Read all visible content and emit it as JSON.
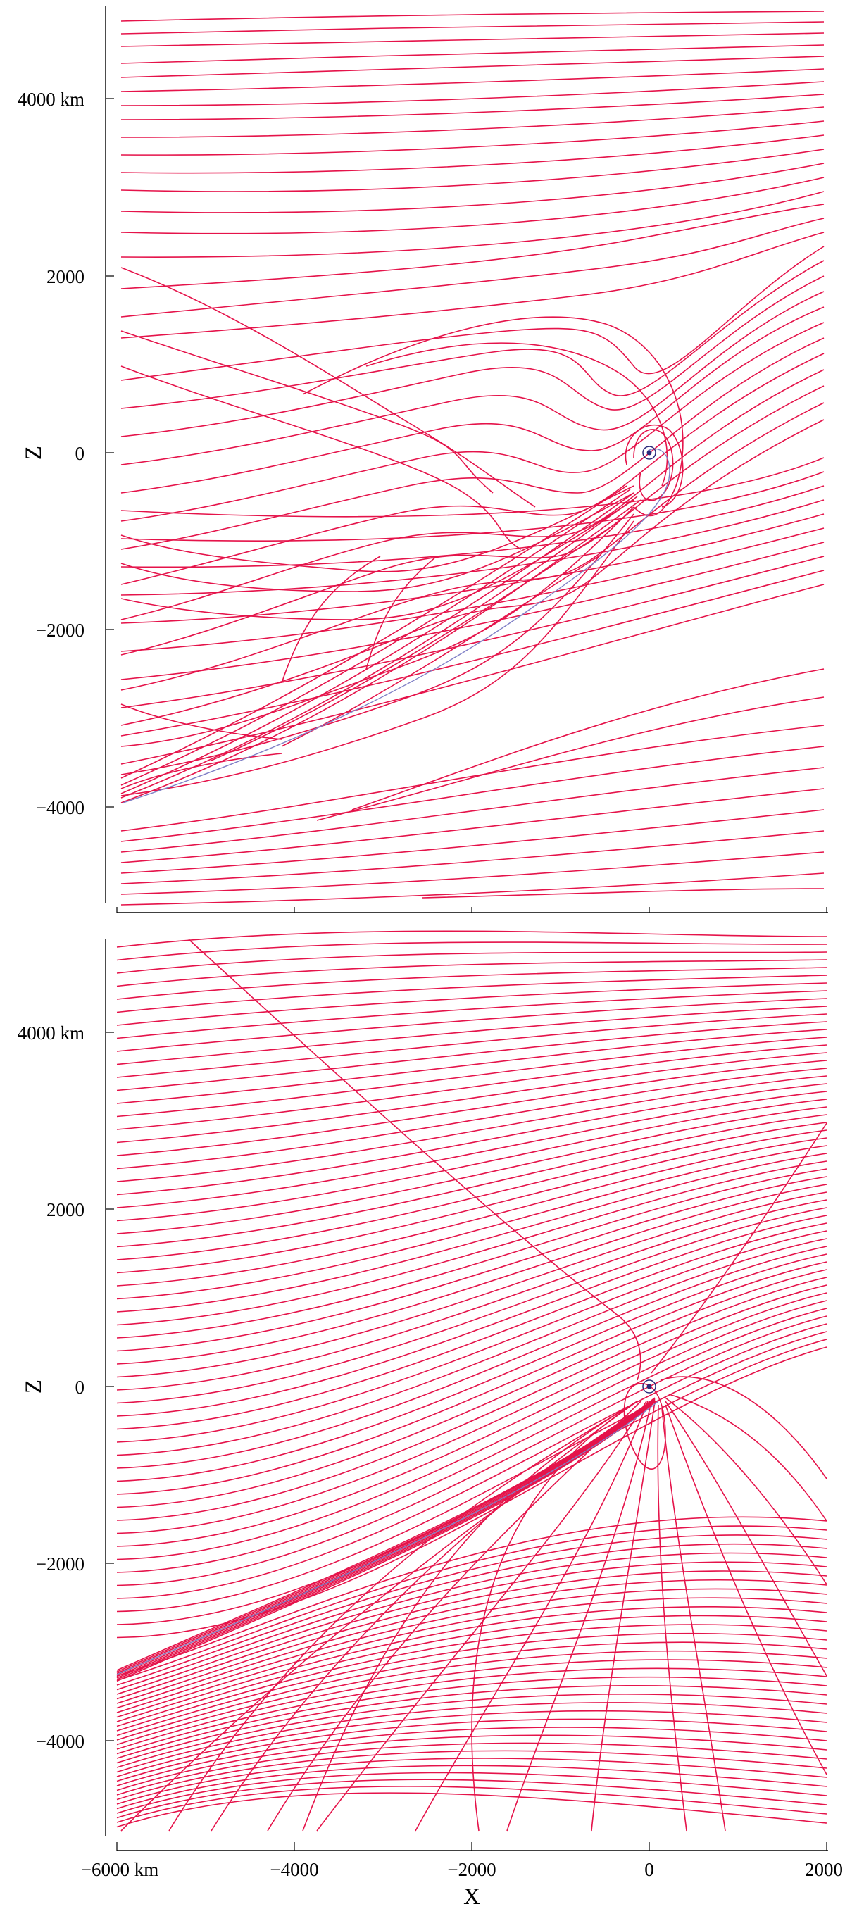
{
  "figure": {
    "panels": [
      {
        "id": "top",
        "y_title": "Z",
        "y_ticks": [
          {
            "value": 4000,
            "label": "4000 km"
          },
          {
            "value": 2000,
            "label": "2000"
          },
          {
            "value": 0,
            "label": "0"
          },
          {
            "value": -2000,
            "label": "−2000"
          },
          {
            "value": -4000,
            "label": "−4000"
          }
        ],
        "x_ticks": [
          {
            "value": -6000,
            "label": ""
          },
          {
            "value": -4000,
            "label": ""
          },
          {
            "value": -2000,
            "label": ""
          },
          {
            "value": 0,
            "label": ""
          },
          {
            "value": 2000,
            "label": ""
          }
        ]
      },
      {
        "id": "bottom",
        "y_title": "Z",
        "x_title": "X",
        "y_ticks": [
          {
            "value": 4000,
            "label": "4000 km"
          },
          {
            "value": 2000,
            "label": "2000"
          },
          {
            "value": 0,
            "label": "0"
          },
          {
            "value": -2000,
            "label": "−2000"
          },
          {
            "value": -4000,
            "label": "−4000"
          }
        ],
        "x_ticks": [
          {
            "value": -6000,
            "label": "−6000 km"
          },
          {
            "value": -4000,
            "label": "−4000"
          },
          {
            "value": -2000,
            "label": "−2000"
          },
          {
            "value": 0,
            "label": "0"
          },
          {
            "value": 2000,
            "label": "2000"
          }
        ]
      }
    ],
    "colors": {
      "field_lines": "#e5134a",
      "boundary": "#7f7fc6",
      "planet": "#2a2a7a",
      "axes": "#000000"
    }
  }
}
